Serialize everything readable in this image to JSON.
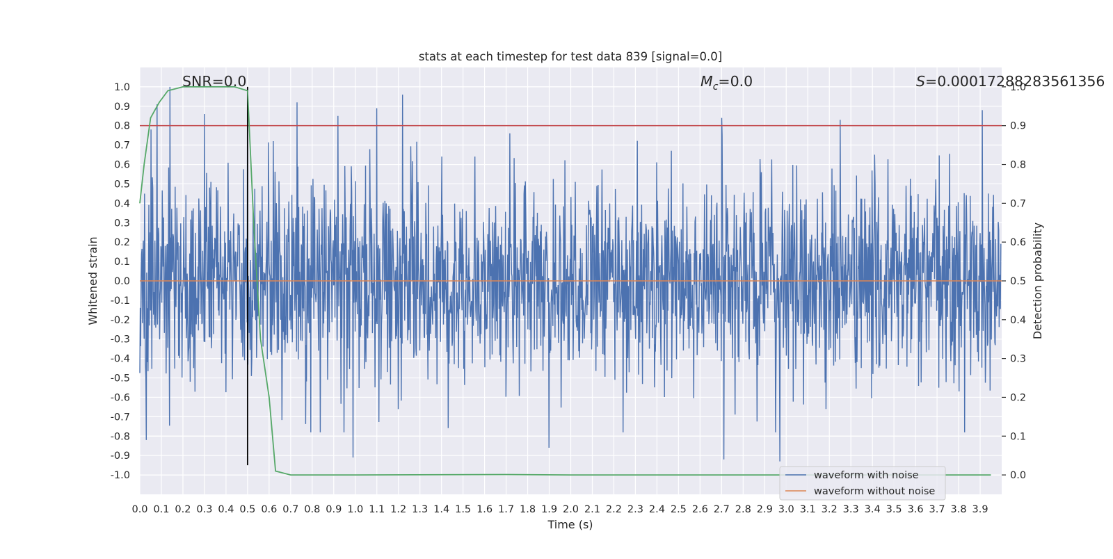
{
  "chart_data": {
    "type": "line",
    "title": "stats at each timestep for test data 839 [signal=0.0]",
    "xlabel": "Time (s)",
    "ylabel": "Whitened strain",
    "y2label": "Detection probability",
    "xlim": [
      0.0,
      4.0
    ],
    "ylim": [
      -1.1,
      1.1
    ],
    "y2lim": [
      -0.05,
      1.05
    ],
    "x_ticks": [
      0.0,
      0.1,
      0.2,
      0.3,
      0.4,
      0.5,
      0.6,
      0.7,
      0.8,
      0.9,
      1.0,
      1.1,
      1.2,
      1.3,
      1.4,
      1.5,
      1.6,
      1.7,
      1.8,
      1.9,
      2.0,
      2.1,
      2.2,
      2.3,
      2.4,
      2.5,
      2.6,
      2.7,
      2.8,
      2.9,
      3.0,
      3.1,
      3.2,
      3.3,
      3.4,
      3.5,
      3.6,
      3.7,
      3.8,
      3.9
    ],
    "y_ticks": [
      -1.0,
      -0.9,
      -0.8,
      -0.7,
      -0.6,
      -0.5,
      -0.4,
      -0.3,
      -0.2,
      -0.1,
      0.0,
      0.1,
      0.2,
      0.3,
      0.4,
      0.5,
      0.6,
      0.7,
      0.8,
      0.9,
      1.0
    ],
    "y2_ticks": [
      0.0,
      0.1,
      0.2,
      0.3,
      0.4,
      0.5,
      0.6,
      0.7,
      0.8,
      0.9,
      1.0
    ],
    "grid": true,
    "legend_position": "lower-right",
    "annotations": {
      "snr": "SNR=0.0",
      "mc_symbol": "M",
      "mc_sub": "c",
      "mc_value": "=0.0",
      "s_symbol": "S",
      "s_value": "=0.00017288283561356"
    },
    "series": [
      {
        "name": "waveform with noise",
        "color": "#4c72b0",
        "axis": "left",
        "kind": "dense-noise",
        "x_range": [
          0.0,
          3.996
        ],
        "typical_amplitude": 0.35,
        "peaks": [
          {
            "x": 0.14,
            "y": 1.0
          },
          {
            "x": 0.08,
            "y": 0.91
          },
          {
            "x": 0.5,
            "y": 0.98
          },
          {
            "x": 1.22,
            "y": 0.96
          },
          {
            "x": 0.73,
            "y": 0.92
          },
          {
            "x": 1.1,
            "y": 0.89
          },
          {
            "x": 0.92,
            "y": 0.85
          },
          {
            "x": 2.7,
            "y": 0.84
          },
          {
            "x": 3.91,
            "y": 0.88
          },
          {
            "x": 3.25,
            "y": 0.83
          },
          {
            "x": 0.3,
            "y": 0.86
          },
          {
            "x": 0.99,
            "y": -0.91
          },
          {
            "x": 2.71,
            "y": -0.92
          },
          {
            "x": 2.97,
            "y": -0.93
          },
          {
            "x": 0.03,
            "y": -0.82
          },
          {
            "x": 1.9,
            "y": -0.86
          }
        ]
      },
      {
        "name": "waveform without noise",
        "color": "#dd8452",
        "axis": "left",
        "x": [
          0.0,
          4.0
        ],
        "y": [
          0.0,
          0.0
        ]
      },
      {
        "name": "",
        "color": "#55a868",
        "axis": "right",
        "x": [
          0.0,
          0.02,
          0.05,
          0.09,
          0.13,
          0.2,
          0.3,
          0.44,
          0.5,
          0.53,
          0.56,
          0.6,
          0.63,
          0.7,
          1.0,
          1.7,
          2.0,
          3.0,
          3.95
        ],
        "y": [
          0.7,
          0.8,
          0.92,
          0.96,
          0.99,
          1.0,
          1.0,
          1.0,
          0.99,
          0.63,
          0.35,
          0.2,
          0.01,
          0.0,
          0.0,
          0.001,
          0.0,
          0.0,
          0.0
        ]
      }
    ],
    "threshold_line": {
      "axis": "right",
      "y": 0.9,
      "color": "#c44e52"
    },
    "vertical_marker": {
      "x": 0.5,
      "color": "#000000"
    }
  }
}
